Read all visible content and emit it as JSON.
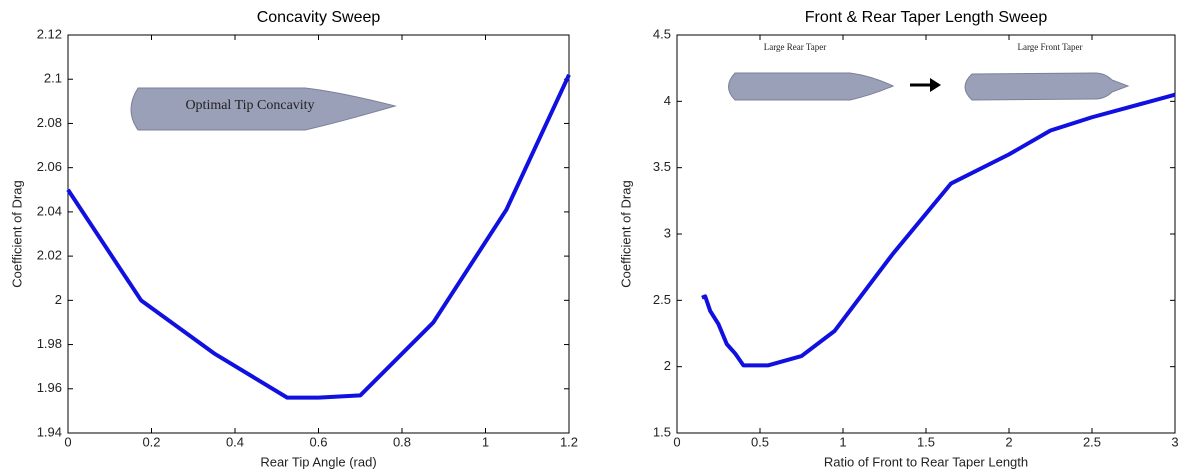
{
  "chart_data": [
    {
      "type": "line",
      "title": "Concavity Sweep",
      "xlabel": "Rear Tip Angle (rad)",
      "ylabel": "Coefficient of Drag",
      "annotations": [
        "Optimal Tip Concavity"
      ],
      "x": [
        0,
        0.175,
        0.35,
        0.525,
        0.6,
        0.7,
        0.875,
        1.05,
        1.2
      ],
      "series": [
        {
          "color": "#1010e0",
          "values": [
            2.05,
            2.0,
            1.976,
            1.956,
            1.956,
            1.957,
            1.99,
            2.041,
            2.102
          ]
        }
      ],
      "xlim": [
        0,
        1.2
      ],
      "xticks": [
        0,
        0.2,
        0.4,
        0.6,
        0.8,
        1,
        1.2
      ],
      "ylim": [
        1.94,
        2.12
      ],
      "yticks": [
        1.94,
        1.96,
        1.98,
        2,
        2.02,
        2.04,
        2.06,
        2.08,
        2.1,
        2.12
      ]
    },
    {
      "type": "line",
      "title": "Front & Rear Taper Length Sweep",
      "xlabel": "Ratio of Front to Rear Taper Length",
      "ylabel": "Coefficient of Drag",
      "annotations": [
        "Large Rear Taper",
        "Large Front Taper"
      ],
      "x": [
        0.15,
        0.17,
        0.2,
        0.25,
        0.3,
        0.35,
        0.4,
        0.55,
        0.75,
        0.95,
        1.3,
        1.65,
        2.0,
        2.25,
        2.5,
        3.0
      ],
      "series": [
        {
          "color": "#1010e0",
          "values": [
            2.52,
            2.53,
            2.42,
            2.32,
            2.17,
            2.1,
            2.01,
            2.01,
            2.08,
            2.27,
            2.85,
            3.38,
            3.6,
            3.78,
            3.88,
            4.05
          ]
        }
      ],
      "xlim": [
        0,
        3
      ],
      "xticks": [
        0,
        0.5,
        1,
        1.5,
        2,
        2.5,
        3
      ],
      "ylim": [
        1.5,
        4.5
      ],
      "yticks": [
        1.5,
        2,
        2.5,
        3,
        3.5,
        4,
        4.5
      ]
    }
  ]
}
